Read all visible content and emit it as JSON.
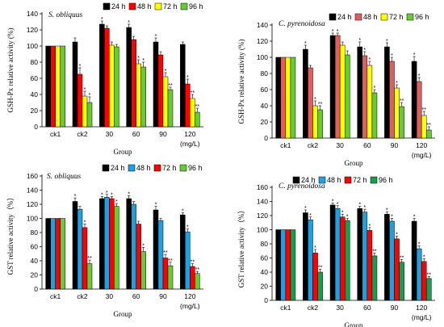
{
  "chart_data": [
    {
      "type": "bar",
      "title": "S. obliquus",
      "ylabel": "GSH-Px relative activity (%)",
      "xlabel": "Group",
      "unit": "(mg/L)",
      "ylim": [
        0,
        140
      ],
      "yticks": [
        0,
        20,
        40,
        60,
        80,
        100,
        120,
        140
      ],
      "categories": [
        "ck1",
        "ck2",
        "30",
        "60",
        "90",
        "120"
      ],
      "series": [
        {
          "name": "24 h",
          "color": "#000000",
          "values": [
            100,
            105,
            127,
            123,
            105,
            102
          ],
          "errors": [
            0,
            5,
            4,
            4,
            5,
            3
          ],
          "marks": [
            "",
            "",
            "*",
            "*",
            "*",
            ""
          ]
        },
        {
          "name": "48 h",
          "color": "#ff0000",
          "values": [
            100,
            65,
            122,
            108,
            89,
            53
          ],
          "errors": [
            0,
            8,
            3,
            4,
            4,
            6
          ],
          "marks": [
            "",
            "*",
            "",
            "",
            "",
            "*"
          ]
        },
        {
          "name": "72 h",
          "color": "#ffff00",
          "values": [
            100,
            38,
            101,
            78,
            62,
            35
          ],
          "errors": [
            0,
            6,
            4,
            5,
            5,
            5
          ],
          "marks": [
            "",
            "*",
            "",
            "*",
            "*",
            "**"
          ]
        },
        {
          "name": "96 h",
          "color": "#66cc33",
          "values": [
            100,
            30,
            99,
            74,
            46,
            18
          ],
          "errors": [
            0,
            7,
            3,
            6,
            3,
            5
          ],
          "marks": [
            "",
            "*",
            "",
            "*",
            "**",
            "**"
          ]
        }
      ]
    },
    {
      "type": "bar",
      "title": "C. pyrenoidosa",
      "ylabel": "GSH-Px relative activity (%)",
      "xlabel": "Group",
      "unit": "(mg/L)",
      "ylim": [
        0,
        140
      ],
      "yticks": [
        0,
        20,
        40,
        60,
        80,
        100,
        120,
        140
      ],
      "categories": [
        "ck1",
        "ck2",
        "30",
        "60",
        "90",
        "120"
      ],
      "series": [
        {
          "name": "24 h",
          "color": "#000000",
          "values": [
            100,
            110,
            127,
            113,
            113,
            95
          ],
          "errors": [
            0,
            5,
            3,
            6,
            5,
            6
          ],
          "marks": [
            "",
            "*",
            "*",
            "*",
            "*",
            "*"
          ]
        },
        {
          "name": "48 h",
          "color": "#e06060",
          "values": [
            100,
            87,
            127,
            102,
            95,
            70
          ],
          "errors": [
            0,
            3,
            3,
            5,
            5,
            5
          ],
          "marks": [
            "",
            "",
            "*",
            "*",
            "*",
            "*"
          ]
        },
        {
          "name": "72 h",
          "color": "#ffff00",
          "values": [
            100,
            40,
            115,
            90,
            62,
            28
          ],
          "errors": [
            0,
            6,
            4,
            5,
            4,
            5
          ],
          "marks": [
            "",
            "*",
            "",
            "*",
            "*",
            "**"
          ]
        },
        {
          "name": "96 h",
          "color": "#66cc33",
          "values": [
            100,
            35,
            103,
            56,
            39,
            10
          ],
          "errors": [
            0,
            5,
            5,
            4,
            5,
            4
          ],
          "marks": [
            "",
            "**",
            "",
            "*",
            "**",
            "**"
          ]
        }
      ]
    },
    {
      "type": "bar",
      "title": "S. obliquus",
      "ylabel": "GST relative activity（%）",
      "xlabel": "Group",
      "unit": "(mg/L)",
      "ylim": [
        0,
        160
      ],
      "yticks": [
        0,
        20,
        40,
        60,
        80,
        100,
        120,
        140,
        160
      ],
      "categories": [
        "ck1",
        "ck2",
        "30",
        "60",
        "90",
        "120"
      ],
      "series": [
        {
          "name": "24 h",
          "color": "#000000",
          "values": [
            100,
            124,
            128,
            128,
            112,
            105
          ],
          "errors": [
            0,
            5,
            3,
            4,
            5,
            3
          ],
          "marks": [
            "",
            "*",
            "*",
            "*",
            "*",
            "*"
          ]
        },
        {
          "name": "48 h",
          "color": "#1fa0e0",
          "values": [
            100,
            113,
            130,
            120,
            97,
            81
          ],
          "errors": [
            0,
            4,
            4,
            4,
            3,
            4
          ],
          "marks": [
            "",
            "",
            "*",
            "",
            "",
            "*"
          ]
        },
        {
          "name": "72 h",
          "color": "#ff0000",
          "values": [
            100,
            87,
            128,
            92,
            44,
            32
          ],
          "errors": [
            0,
            5,
            3,
            4,
            5,
            4
          ],
          "marks": [
            "",
            "*",
            "*",
            "",
            "**",
            "**"
          ]
        },
        {
          "name": "96 h",
          "color": "#66cc33",
          "values": [
            100,
            36,
            117,
            53,
            33,
            22
          ],
          "errors": [
            0,
            5,
            4,
            6,
            5,
            3
          ],
          "marks": [
            "",
            "**",
            "*",
            "*",
            "**",
            "**"
          ]
        }
      ]
    },
    {
      "type": "bar",
      "title": "C. pyrenoidosa",
      "ylabel": "GST relative activity（%）",
      "xlabel": "Group",
      "unit": "(mg/L)",
      "ylim": [
        0,
        160
      ],
      "yticks": [
        0,
        20,
        40,
        60,
        80,
        100,
        120,
        140,
        160
      ],
      "categories": [
        "ck1",
        "ck2",
        "30",
        "60",
        "90",
        "120"
      ],
      "series": [
        {
          "name": "24 h",
          "color": "#000000",
          "values": [
            100,
            124,
            135,
            130,
            122,
            112
          ],
          "errors": [
            0,
            4,
            3,
            3,
            3,
            4
          ],
          "marks": [
            "",
            "*",
            "*",
            "*",
            "*",
            "*"
          ]
        },
        {
          "name": "48 h",
          "color": "#1fa0e0",
          "values": [
            100,
            114,
            130,
            125,
            112,
            73
          ],
          "errors": [
            0,
            4,
            4,
            4,
            4,
            4
          ],
          "marks": [
            "",
            "*",
            "*",
            "*",
            "*",
            "*"
          ]
        },
        {
          "name": "72 h",
          "color": "#ff0000",
          "values": [
            100,
            67,
            118,
            99,
            87,
            55
          ],
          "errors": [
            0,
            5,
            4,
            4,
            4,
            4
          ],
          "marks": [
            "",
            "*",
            "*",
            "*",
            "*",
            "*"
          ]
        },
        {
          "name": "96 h",
          "color": "#169e4e",
          "values": [
            100,
            40,
            113,
            63,
            54,
            31
          ],
          "errors": [
            0,
            4,
            3,
            4,
            4,
            3
          ],
          "marks": [
            "",
            "**",
            "*",
            "**",
            "**",
            "**"
          ]
        }
      ]
    }
  ]
}
